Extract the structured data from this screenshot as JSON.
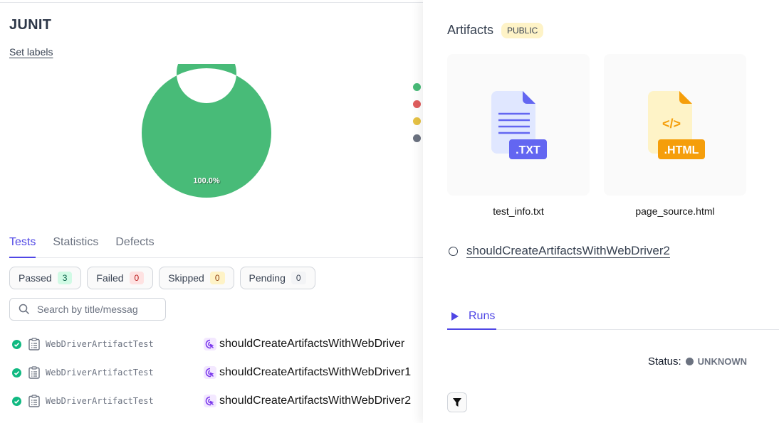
{
  "suite": {
    "title": "JUNIT",
    "set_labels": "Set labels"
  },
  "chart_data": {
    "type": "pie",
    "donut": true,
    "values": [
      100
    ],
    "data_labels": [
      "100.0%"
    ],
    "colors": [
      "#48bb78"
    ],
    "legend_colors": [
      "#48bb78",
      "#e05e5e",
      "#e6c244",
      "#6b7280"
    ],
    "legend_placement": "right"
  },
  "tabs": [
    {
      "label": "Tests"
    },
    {
      "label": "Statistics"
    },
    {
      "label": "Defects"
    }
  ],
  "filters": [
    {
      "label": "Passed",
      "count": "3",
      "bg": "#d1fae5",
      "fg": "#065f46"
    },
    {
      "label": "Failed",
      "count": "0",
      "bg": "#fee2e2",
      "fg": "#b91c1c"
    },
    {
      "label": "Skipped",
      "count": "0",
      "bg": "#fef3c7",
      "fg": "#92400e"
    },
    {
      "label": "Pending",
      "count": "0",
      "bg": "#f3f4f6",
      "fg": "#374151"
    }
  ],
  "search": {
    "placeholder": "Search by title/messag"
  },
  "tests": [
    {
      "class": "WebDriverArtifactTest",
      "name": "shouldCreateArtifactsWithWebDriver",
      "status": "passed"
    },
    {
      "class": "WebDriverArtifactTest",
      "name": "shouldCreateArtifactsWithWebDriver1",
      "status": "passed"
    },
    {
      "class": "WebDriverArtifactTest",
      "name": "shouldCreateArtifactsWithWebDriver2",
      "status": "passed"
    }
  ],
  "artifacts": {
    "title": "Artifacts",
    "badge": "PUBLIC",
    "files": [
      {
        "name": "test_info.txt",
        "ext": ".TXT",
        "color": "#6366f1"
      },
      {
        "name": "page_source.html",
        "ext": ".HTML",
        "color": "#f59e0b"
      }
    ]
  },
  "selected_test": "shouldCreateArtifactsWithWebDriver2",
  "runs": {
    "tab": "Runs",
    "status_label": "Status:",
    "status_value": "UNKNOWN"
  }
}
